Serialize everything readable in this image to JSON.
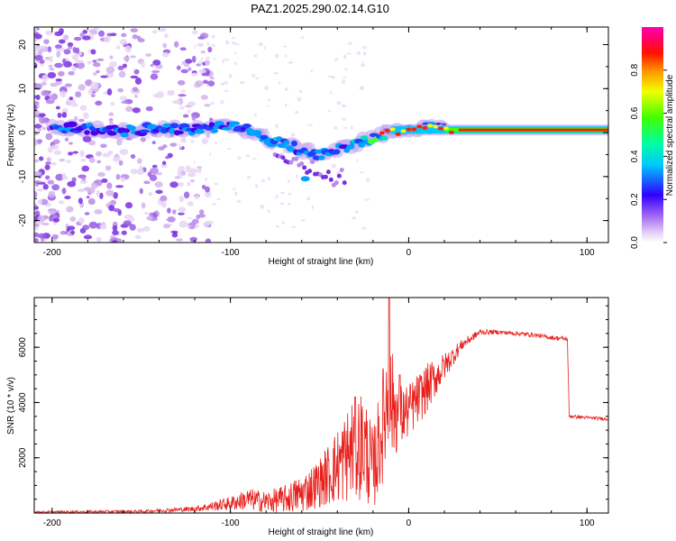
{
  "title": "PAZ1.2025.290.02.14.G10",
  "chart_data": [
    {
      "type": "heatmap",
      "name": "spectrogram",
      "xlabel": "Height of straight line (km)",
      "ylabel": "Frequency (Hz)",
      "xlim": [
        -210,
        112
      ],
      "ylim": [
        -25,
        24
      ],
      "xticks": [
        -200,
        -100,
        0,
        100
      ],
      "yticks": [
        -20,
        -10,
        0,
        10,
        20
      ],
      "colorbar": {
        "label": "Normalized spectral amplitude",
        "range": [
          0,
          1
        ],
        "ticks": [
          0.0,
          0.2,
          0.4,
          0.6,
          0.8
        ]
      },
      "ridge": {
        "description_points_km_hz": [
          [
            -200,
            1.2
          ],
          [
            -180,
            0.8
          ],
          [
            -160,
            0.3
          ],
          [
            -140,
            1.0
          ],
          [
            -120,
            0.6
          ],
          [
            -100,
            1.5
          ],
          [
            -90,
            0.5
          ],
          [
            -80,
            -1.5
          ],
          [
            -70,
            -2.5
          ],
          [
            -60,
            -4.0
          ],
          [
            -50,
            -5.0
          ],
          [
            -40,
            -4.0
          ],
          [
            -30,
            -2.5
          ],
          [
            -20,
            -1.0
          ],
          [
            -10,
            0.0
          ],
          [
            0,
            1.0
          ],
          [
            20,
            0.8
          ],
          [
            40,
            0.7
          ],
          [
            80,
            0.6
          ],
          [
            112,
            0.6
          ]
        ]
      }
    },
    {
      "type": "line",
      "name": "snr",
      "xlabel": "Height of straight line (km)",
      "ylabel": "SNR (10 * v/v)",
      "xlim": [
        -210,
        112
      ],
      "ylim": [
        0,
        7800
      ],
      "xticks": [
        -200,
        -100,
        0,
        100
      ],
      "yticks": [
        2000,
        4000,
        6000
      ],
      "color": "#e8201c",
      "envelope_km_mean_amp": [
        [
          -210,
          40,
          30
        ],
        [
          -150,
          60,
          50
        ],
        [
          -120,
          150,
          100
        ],
        [
          -100,
          350,
          250
        ],
        [
          -90,
          500,
          400
        ],
        [
          -80,
          400,
          400
        ],
        [
          -70,
          500,
          500
        ],
        [
          -60,
          700,
          700
        ],
        [
          -50,
          1100,
          900
        ],
        [
          -40,
          1700,
          1400
        ],
        [
          -30,
          2400,
          2000
        ],
        [
          -25,
          2500,
          2000
        ],
        [
          -20,
          1500,
          1500
        ],
        [
          -15,
          3000,
          2000
        ],
        [
          -12,
          4200,
          2500
        ],
        [
          -5,
          3500,
          1200
        ],
        [
          0,
          3700,
          1000
        ],
        [
          10,
          4500,
          900
        ],
        [
          20,
          5300,
          500
        ],
        [
          30,
          6100,
          200
        ],
        [
          40,
          6550,
          100
        ],
        [
          50,
          6550,
          80
        ],
        [
          60,
          6500,
          80
        ],
        [
          70,
          6450,
          80
        ],
        [
          80,
          6350,
          80
        ],
        [
          89,
          6300,
          80
        ],
        [
          90,
          3500,
          60
        ],
        [
          112,
          3400,
          60
        ]
      ],
      "spikes_km_value": [
        [
          -11,
          7800
        ],
        [
          -5,
          5000
        ],
        [
          -30,
          4200
        ]
      ]
    }
  ]
}
